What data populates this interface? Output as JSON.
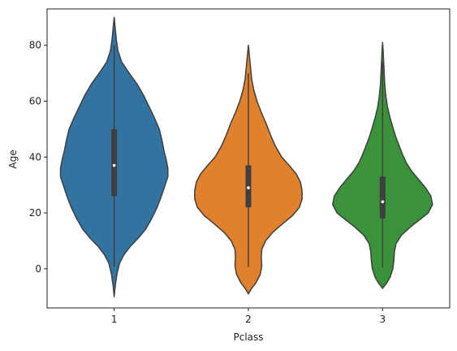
{
  "chart_data": {
    "type": "violin",
    "xlabel": "Pclass",
    "ylabel": "Age",
    "categories": [
      "1",
      "2",
      "3"
    ],
    "ylim": [
      -14,
      93
    ],
    "yticks": [
      0,
      20,
      40,
      60,
      80
    ],
    "grid": false,
    "legend": "none",
    "violins": [
      {
        "category": "1",
        "color": "#3274a1",
        "min": -10,
        "max": 90,
        "q1": 26,
        "median": 37,
        "q3": 50,
        "whisker_low": 0.9,
        "whisker_high": 80,
        "density": [
          [
            -10,
            0.0
          ],
          [
            -6,
            0.02
          ],
          [
            -2,
            0.05
          ],
          [
            2,
            0.1
          ],
          [
            5,
            0.18
          ],
          [
            8,
            0.3
          ],
          [
            11,
            0.45
          ],
          [
            14,
            0.58
          ],
          [
            18,
            0.7
          ],
          [
            22,
            0.8
          ],
          [
            26,
            0.88
          ],
          [
            30,
            0.95
          ],
          [
            33,
            1.0
          ],
          [
            36,
            1.0
          ],
          [
            39,
            0.97
          ],
          [
            42,
            0.93
          ],
          [
            46,
            0.89
          ],
          [
            50,
            0.84
          ],
          [
            54,
            0.75
          ],
          [
            58,
            0.65
          ],
          [
            62,
            0.55
          ],
          [
            66,
            0.43
          ],
          [
            70,
            0.28
          ],
          [
            74,
            0.14
          ],
          [
            78,
            0.07
          ],
          [
            82,
            0.04
          ],
          [
            86,
            0.02
          ],
          [
            90,
            0.0
          ]
        ]
      },
      {
        "category": "2",
        "color": "#e1812c",
        "min": -9,
        "max": 80,
        "q1": 22,
        "median": 29,
        "q3": 37,
        "whisker_low": 0.7,
        "whisker_high": 70,
        "density": [
          [
            -9,
            0.0
          ],
          [
            -7,
            0.06
          ],
          [
            -5,
            0.14
          ],
          [
            -2,
            0.22
          ],
          [
            1,
            0.25
          ],
          [
            4,
            0.24
          ],
          [
            7,
            0.25
          ],
          [
            10,
            0.32
          ],
          [
            13,
            0.45
          ],
          [
            16,
            0.63
          ],
          [
            19,
            0.82
          ],
          [
            22,
            0.95
          ],
          [
            25,
            1.0
          ],
          [
            28,
            1.0
          ],
          [
            31,
            0.97
          ],
          [
            34,
            0.89
          ],
          [
            37,
            0.76
          ],
          [
            40,
            0.62
          ],
          [
            44,
            0.5
          ],
          [
            48,
            0.41
          ],
          [
            52,
            0.33
          ],
          [
            56,
            0.24
          ],
          [
            60,
            0.16
          ],
          [
            64,
            0.1
          ],
          [
            68,
            0.06
          ],
          [
            72,
            0.04
          ],
          [
            76,
            0.02
          ],
          [
            80,
            0.0
          ]
        ]
      },
      {
        "category": "3",
        "color": "#3a923a",
        "min": -7,
        "max": 81,
        "q1": 18,
        "median": 24,
        "q3": 33,
        "whisker_low": 0.4,
        "whisker_high": 74,
        "density": [
          [
            -7,
            0.0
          ],
          [
            -5,
            0.08
          ],
          [
            -3,
            0.14
          ],
          [
            0,
            0.19
          ],
          [
            3,
            0.21
          ],
          [
            6,
            0.22
          ],
          [
            9,
            0.25
          ],
          [
            12,
            0.35
          ],
          [
            15,
            0.52
          ],
          [
            18,
            0.72
          ],
          [
            20,
            0.85
          ],
          [
            23,
            0.93
          ],
          [
            26,
            0.9
          ],
          [
            29,
            0.8
          ],
          [
            32,
            0.67
          ],
          [
            35,
            0.54
          ],
          [
            38,
            0.44
          ],
          [
            41,
            0.37
          ],
          [
            44,
            0.31
          ],
          [
            47,
            0.25
          ],
          [
            50,
            0.2
          ],
          [
            54,
            0.14
          ],
          [
            58,
            0.09
          ],
          [
            62,
            0.06
          ],
          [
            66,
            0.04
          ],
          [
            70,
            0.03
          ],
          [
            74,
            0.02
          ],
          [
            78,
            0.01
          ],
          [
            81,
            0.0
          ]
        ]
      }
    ]
  }
}
